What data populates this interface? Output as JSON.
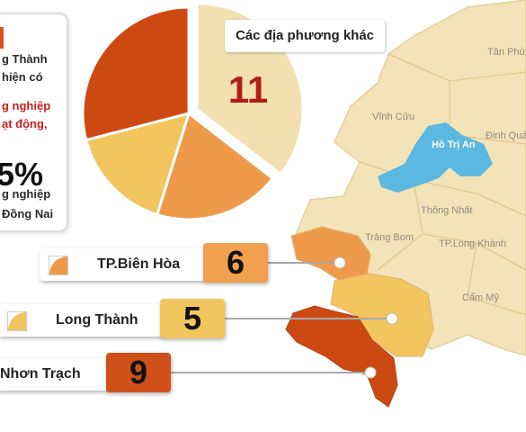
{
  "chart_data": {
    "type": "pie",
    "categories": [
      "Các địa phương khác",
      "TP.Biên Hòa",
      "Long Thành",
      "Nhơn Trạch"
    ],
    "values": [
      11,
      6,
      5,
      9
    ],
    "title": "",
    "data_labels": [
      "11",
      "6",
      "5",
      "9"
    ],
    "legend": "callouts",
    "colors": [
      "#f3e0b0",
      "#ee9a4a",
      "#f2c55e",
      "#cc4a12"
    ]
  },
  "info_box": {
    "line1": "g Thành",
    "line2": "hiện có",
    "line3": "g nghiệp",
    "line4": "ạt động,",
    "percent": "5%",
    "line5": "g nghiệp",
    "line6": "Đồng Nai"
  },
  "map": {
    "labels": {
      "tan_phu": "Tân Phú",
      "vinh_cuu": "Vĩnh Cửu",
      "dinh_quan": "Định Quán",
      "ho_tri_an": "Hồ Trị An",
      "thong_nhat": "Thống Nhất",
      "trang_bom": "Trảng Bom",
      "long_khanh": "TP.Long Khánh",
      "cam_my": "Cẩm Mỹ"
    },
    "colors": {
      "land": "#f3e3b8",
      "lake": "#5bb8e0",
      "border": "#e0c78f"
    }
  }
}
